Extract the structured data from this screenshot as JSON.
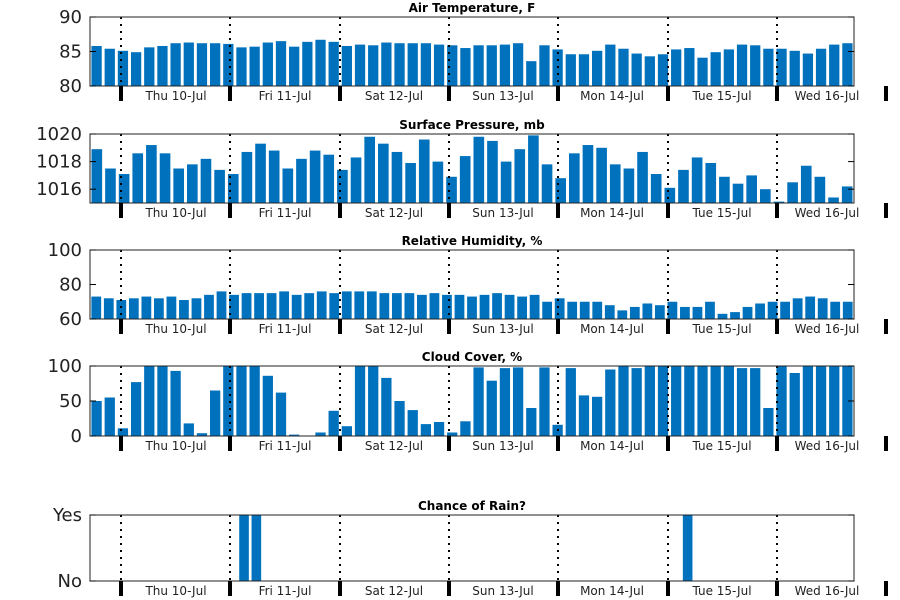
{
  "chart_data": [
    {
      "type": "bar",
      "title": "Air Temperature, F",
      "ylim": [
        80,
        90
      ],
      "yticks": [
        80,
        85,
        90
      ],
      "values": [
        85.8,
        85.4,
        85.1,
        84.9,
        85.6,
        85.8,
        86.2,
        86.3,
        86.2,
        86.2,
        86.1,
        85.6,
        85.7,
        86.3,
        86.5,
        85.7,
        86.4,
        86.7,
        86.4,
        85.8,
        86.0,
        85.9,
        86.3,
        86.2,
        86.2,
        86.2,
        86.0,
        85.9,
        85.5,
        85.9,
        85.9,
        86.0,
        86.2,
        83.6,
        85.9,
        85.3,
        84.6,
        84.6,
        85.1,
        86.0,
        85.4,
        84.7,
        84.3,
        84.6,
        85.3,
        85.5,
        84.1,
        84.9,
        85.3,
        86.0,
        85.9,
        85.4,
        85.4,
        85.1,
        84.7,
        85.4,
        86.0,
        86.2
      ]
    },
    {
      "type": "bar",
      "title": "Surface Pressure, mb",
      "ylim": [
        1015,
        1020
      ],
      "yticks": [
        1016,
        1018,
        1020
      ],
      "ytick_format": 0,
      "values": [
        1018.9,
        1017.5,
        1017.1,
        1018.6,
        1019.2,
        1018.6,
        1017.5,
        1017.8,
        1018.2,
        1017.4,
        1017.1,
        1018.7,
        1019.3,
        1018.8,
        1017.5,
        1018.2,
        1018.8,
        1018.5,
        1017.4,
        1018.3,
        1019.8,
        1019.3,
        1018.7,
        1017.9,
        1019.6,
        1018.0,
        1016.9,
        1018.4,
        1019.8,
        1019.5,
        1018.0,
        1018.9,
        1019.9,
        1017.8,
        1016.8,
        1018.6,
        1019.2,
        1019.0,
        1017.8,
        1017.5,
        1018.7,
        1017.1,
        1016.1,
        1017.4,
        1018.3,
        1017.9,
        1016.9,
        1016.4,
        1017.0,
        1016.0,
        1015.1,
        1016.5,
        1017.7,
        1016.9,
        1015.4,
        1016.2
      ]
    },
    {
      "type": "bar",
      "title": "Relative Humidity, %",
      "ylim": [
        60,
        100
      ],
      "yticks": [
        60,
        80,
        100
      ],
      "values": [
        73,
        72,
        71,
        72,
        73,
        72,
        73,
        71,
        72,
        74,
        76,
        74,
        75,
        75,
        75,
        76,
        74,
        75,
        76,
        75,
        76,
        76,
        76,
        75,
        75,
        75,
        74,
        75,
        74,
        74,
        73,
        74,
        75,
        74,
        73,
        74,
        70,
        72,
        70,
        70,
        70,
        68,
        65,
        67,
        69,
        68,
        70,
        67,
        67,
        70,
        63,
        64,
        67,
        69,
        70,
        70,
        72,
        73,
        72,
        70,
        70
      ]
    },
    {
      "type": "bar",
      "title": "Cloud Cover, %",
      "ylim": [
        0,
        100
      ],
      "yticks": [
        0,
        50,
        100
      ],
      "values": [
        50,
        55,
        11,
        77,
        100,
        100,
        93,
        18,
        4,
        65,
        100,
        100,
        100,
        86,
        62,
        2,
        0,
        5,
        36,
        14,
        100,
        100,
        83,
        50,
        37,
        17,
        20,
        5,
        21,
        98,
        79,
        97,
        98,
        40,
        98,
        16,
        97,
        58,
        56,
        95,
        100,
        97,
        100,
        100,
        100,
        100,
        100,
        100,
        100,
        97,
        97,
        40,
        100,
        90,
        100,
        100,
        100,
        100
      ]
    },
    {
      "type": "bar",
      "title": "Chance of Rain?",
      "ylim": [
        0,
        1
      ],
      "yticks": [
        0,
        1
      ],
      "yticklabels": [
        "No",
        "Yes"
      ],
      "values": [
        0,
        0,
        0,
        0,
        0,
        0,
        0,
        0,
        0,
        0,
        0,
        0,
        1,
        1,
        0,
        0,
        0,
        0,
        0,
        0,
        0,
        0,
        0,
        0,
        0,
        0,
        0,
        0,
        0,
        0,
        0,
        0,
        0,
        0,
        0,
        0,
        0,
        0,
        0,
        0,
        0,
        0,
        0,
        0,
        0,
        0,
        0,
        0,
        1,
        0,
        0,
        0,
        0,
        0,
        0,
        0,
        0,
        0,
        0,
        0,
        0,
        0
      ]
    }
  ],
  "x_labels": [
    "Thu 10-Jul",
    "Fri 11-Jul",
    "Sat 12-Jul",
    "Sun 13-Jul",
    "Mon 14-Jul",
    "Tue 15-Jul",
    "Wed 16-Jul"
  ]
}
